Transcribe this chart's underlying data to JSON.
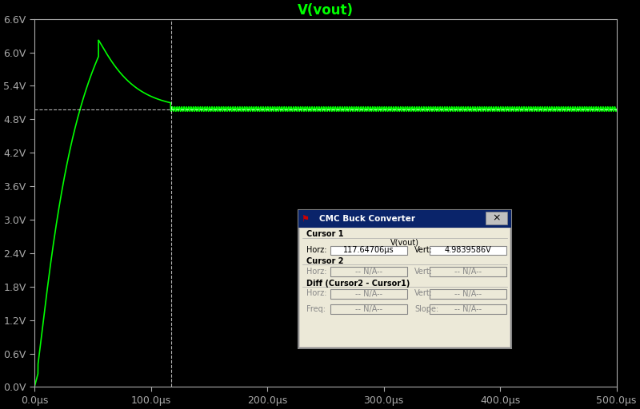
{
  "title": "V(vout)",
  "title_color": "#00ff00",
  "bg_color": "#000000",
  "plot_bg_color": "#000000",
  "line_color": "#00ff00",
  "axis_color": "#aaaaaa",
  "tick_color": "#aaaaaa",
  "cursor_x": 117.64706,
  "cursor_y": 4.9839586,
  "xmin": 0.0,
  "xmax": 500.0,
  "ymin": 0.0,
  "ymax": 6.6,
  "yticks": [
    0.0,
    0.6,
    1.2,
    1.8,
    2.4,
    3.0,
    3.6,
    4.2,
    4.8,
    5.4,
    6.0,
    6.6
  ],
  "ytick_labels": [
    "0.0V",
    "0.6V",
    "1.2V",
    "1.8V",
    "2.4V",
    "3.0V",
    "3.6V",
    "4.2V",
    "4.8V",
    "5.4V",
    "6.0V",
    "6.6V"
  ],
  "xticks": [
    0,
    100,
    200,
    300,
    400,
    500
  ],
  "xtick_labels": [
    "0.0μs",
    "100.0μs",
    "200.0μs",
    "300.0μs",
    "400.0μs",
    "500.0μs"
  ],
  "rise_time_us": 55,
  "peak_voltage": 6.22,
  "settle_voltage": 4.984,
  "settle_time_us": 117.0,
  "ripple_amplitude": 0.04,
  "ripple_freq_mhz": 0.5,
  "dialog_title": "CMC Buck Converter",
  "cursor1_horz": "117.64706μs",
  "cursor1_vert": "4.9839586V",
  "figsize": [
    8.0,
    5.12
  ],
  "dpi": 100
}
